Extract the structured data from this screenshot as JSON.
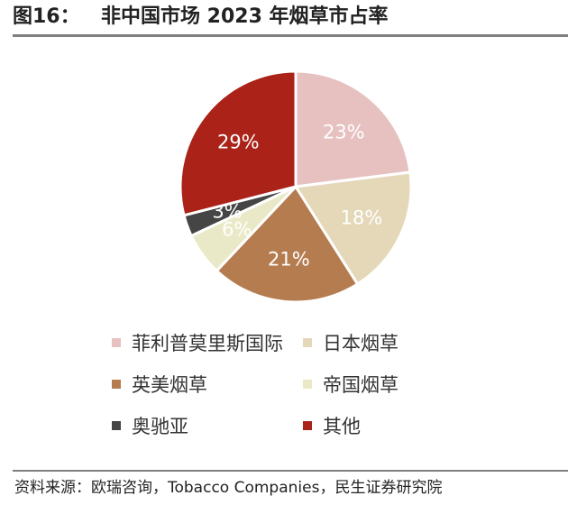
{
  "figure": {
    "number": "图16：",
    "title": "非中国市场 2023 年烟草市占率"
  },
  "chart_data": {
    "type": "pie",
    "title": "非中国市场 2023 年烟草市占率",
    "categories": [
      "菲利普莫里斯国际",
      "日本烟草",
      "英美烟草",
      "帝国烟草",
      "奥驰亚",
      "其他"
    ],
    "values": [
      23,
      18,
      21,
      6,
      3,
      29
    ],
    "labels": [
      "23%",
      "18%",
      "21%",
      "6%",
      "3%",
      "29%"
    ],
    "colors": [
      "#e6c1c0",
      "#e5d8b9",
      "#b57c50",
      "#eae9c7",
      "#454545",
      "#aa2218"
    ],
    "label_colors": [
      "#ffffff",
      "#ffffff",
      "#ffffff",
      "#ffffff",
      "#ffffff",
      "#ffffff"
    ],
    "start": "12 o'clock, clockwise",
    "legend": "bottom, 2 columns"
  },
  "source": "资料来源：欧瑞咨询，Tobacco Companies，民生证券研究院"
}
